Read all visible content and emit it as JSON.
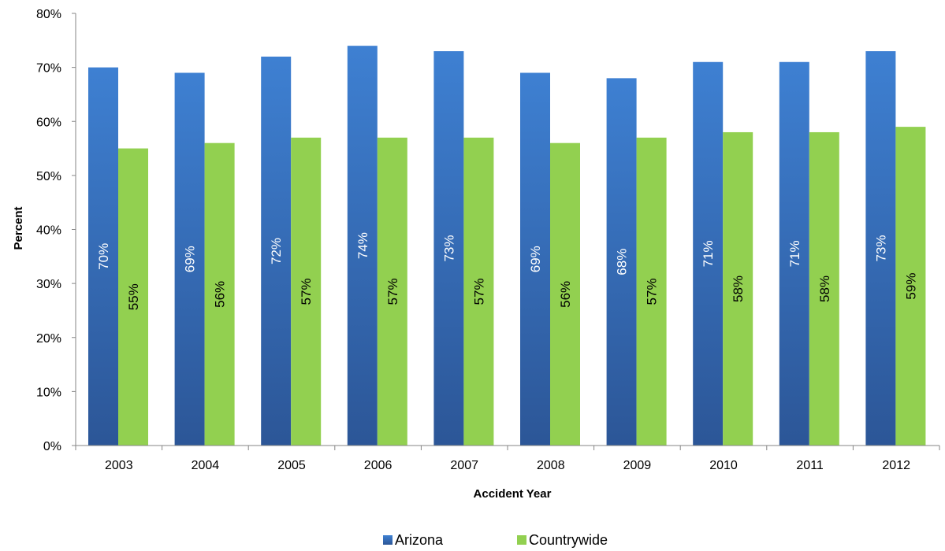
{
  "chart_data": {
    "type": "bar",
    "title": "",
    "xlabel": "Accident Year",
    "ylabel": "Percent",
    "categories": [
      "2003",
      "2004",
      "2005",
      "2006",
      "2007",
      "2008",
      "2009",
      "2010",
      "2011",
      "2012"
    ],
    "series": [
      {
        "name": "Arizona",
        "values": [
          70,
          69,
          72,
          74,
          73,
          69,
          68,
          71,
          71,
          73
        ],
        "labels": [
          "70%",
          "69%",
          "72%",
          "74%",
          "73%",
          "69%",
          "68%",
          "71%",
          "71%",
          "73%"
        ]
      },
      {
        "name": "Countrywide",
        "values": [
          55,
          56,
          57,
          57,
          57,
          56,
          57,
          58,
          58,
          59
        ],
        "labels": [
          "55%",
          "56%",
          "57%",
          "57%",
          "57%",
          "56%",
          "57%",
          "58%",
          "58%",
          "59%"
        ]
      }
    ],
    "ylim": [
      0,
      80
    ],
    "yticks": [
      0,
      10,
      20,
      30,
      40,
      50,
      60,
      70,
      80
    ],
    "ytick_labels": [
      "0%",
      "10%",
      "20%",
      "30%",
      "40%",
      "50%",
      "60%",
      "70%",
      "80%"
    ],
    "grid": false,
    "legend_position": "bottom-center"
  },
  "colors": {
    "arizona_top": "#3e80d2",
    "arizona_bottom": "#2c5697",
    "countrywide": "#92d050",
    "arizona_label": "#ffffff",
    "countrywide_label": "#000000",
    "axis": "#868686"
  }
}
